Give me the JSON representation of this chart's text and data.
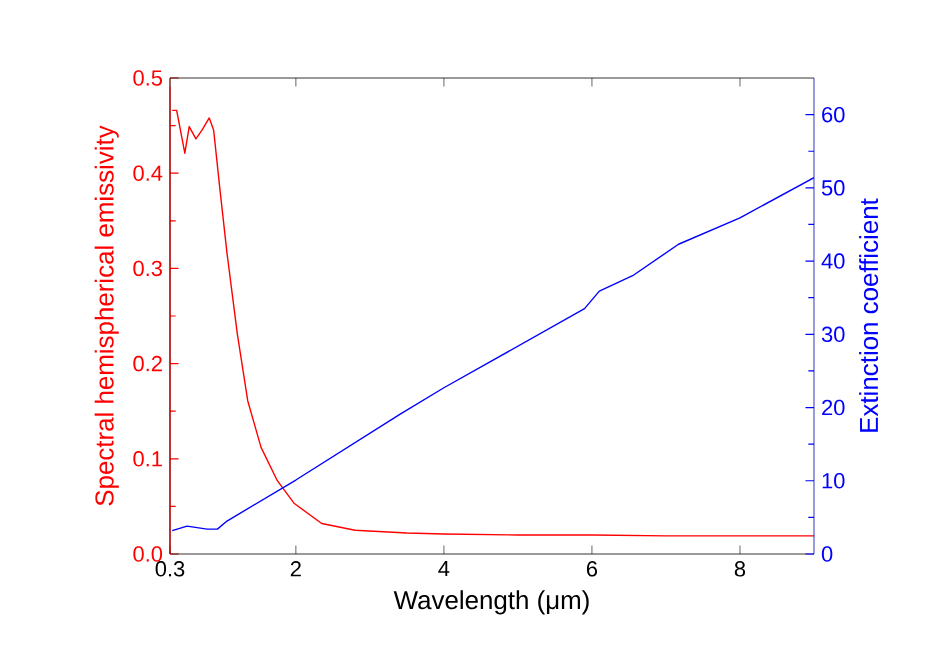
{
  "chart_data": {
    "type": "line",
    "xlabel": "Wavelength (μm)",
    "ylabel": "Spectral hemispherical emissivity",
    "y2label": "Extinction coefficient",
    "xlim": [
      0.3,
      9
    ],
    "xticks": [
      0.3,
      2,
      4,
      6,
      8
    ],
    "ylim": [
      0,
      0.5
    ],
    "yticks": [
      {
        "value": 0,
        "label": "0.0"
      },
      0.1,
      0.2,
      0.3,
      0.4,
      0.5
    ],
    "y2lim": [
      0,
      65
    ],
    "y2ticks": [
      0,
      10,
      20,
      30,
      40,
      50,
      60
    ],
    "marker": "none",
    "line_style": "solid",
    "series": [
      {
        "color": "#ff0000",
        "x": [
          0.33,
          0.39,
          0.5,
          0.56,
          0.65,
          0.73,
          0.83,
          0.89,
          0.98,
          1.07,
          1.21,
          1.35,
          1.53,
          1.75,
          1.98,
          2.35,
          2.8,
          3.5,
          4,
          5,
          6,
          7,
          8,
          9
        ],
        "values": [
          0.466,
          0.466,
          0.421,
          0.449,
          0.436,
          0.445,
          0.458,
          0.445,
          0.379,
          0.316,
          0.231,
          0.161,
          0.112,
          0.077,
          0.053,
          0.032,
          0.025,
          0.022,
          0.021,
          0.02,
          0.02,
          0.019,
          0.019,
          0.019
        ]
      },
      {
        "color": "#0000ff",
        "axis": "y2",
        "x": [
          0.33,
          0.53,
          0.8,
          0.94,
          1.07,
          2.0,
          3.41,
          4.0,
          5.9,
          6.1,
          6.55,
          7.17,
          8.0,
          9.0
        ],
        "values": [
          3.2,
          3.8,
          3.4,
          3.4,
          4.5,
          10.1,
          19.1,
          22.7,
          33.5,
          35.9,
          38.0,
          42.3,
          45.9,
          51.4
        ]
      }
    ]
  }
}
